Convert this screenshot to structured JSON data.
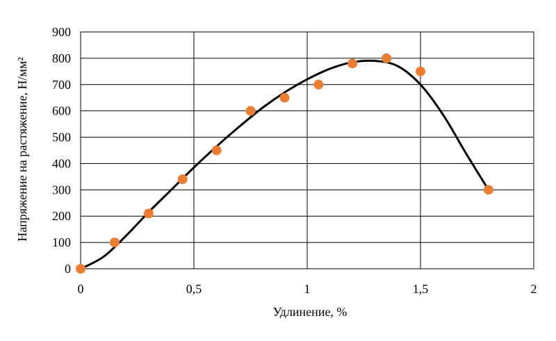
{
  "chart_data": {
    "type": "scatter",
    "title": "",
    "xlabel": "Удлинение, %",
    "ylabel": "Напряжение на растяжение, Н/мм²",
    "xlim": [
      0,
      2
    ],
    "ylim": [
      0,
      900
    ],
    "x_ticks": [
      0,
      0.5,
      1,
      1.5,
      2
    ],
    "x_tick_labels": [
      "0",
      "0,5",
      "1",
      "1,5",
      "2"
    ],
    "y_ticks": [
      0,
      100,
      200,
      300,
      400,
      500,
      600,
      700,
      800,
      900
    ],
    "y_tick_labels": [
      "0",
      "100",
      "200",
      "300",
      "400",
      "500",
      "600",
      "700",
      "800",
      "900"
    ],
    "grid": true,
    "legend": "none",
    "series": [
      {
        "kind": "points",
        "color": "#ED7D31",
        "x": [
          0,
          0.15,
          0.3,
          0.45,
          0.6,
          0.75,
          0.9,
          1.05,
          1.2,
          1.35,
          1.5,
          1.8
        ],
        "y": [
          0,
          100,
          210,
          340,
          450,
          600,
          650,
          700,
          780,
          800,
          750,
          300
        ]
      },
      {
        "kind": "trend-curve",
        "color": "#000000",
        "x": [
          0,
          0.1,
          0.2,
          0.3,
          0.4,
          0.5,
          0.6,
          0.7,
          0.8,
          0.9,
          1.0,
          1.1,
          1.2,
          1.3,
          1.4,
          1.5,
          1.6,
          1.7,
          1.8
        ],
        "y": [
          0,
          45,
          125,
          215,
          300,
          385,
          465,
          540,
          610,
          670,
          720,
          760,
          785,
          790,
          770,
          700,
          585,
          440,
          300
        ]
      }
    ]
  }
}
